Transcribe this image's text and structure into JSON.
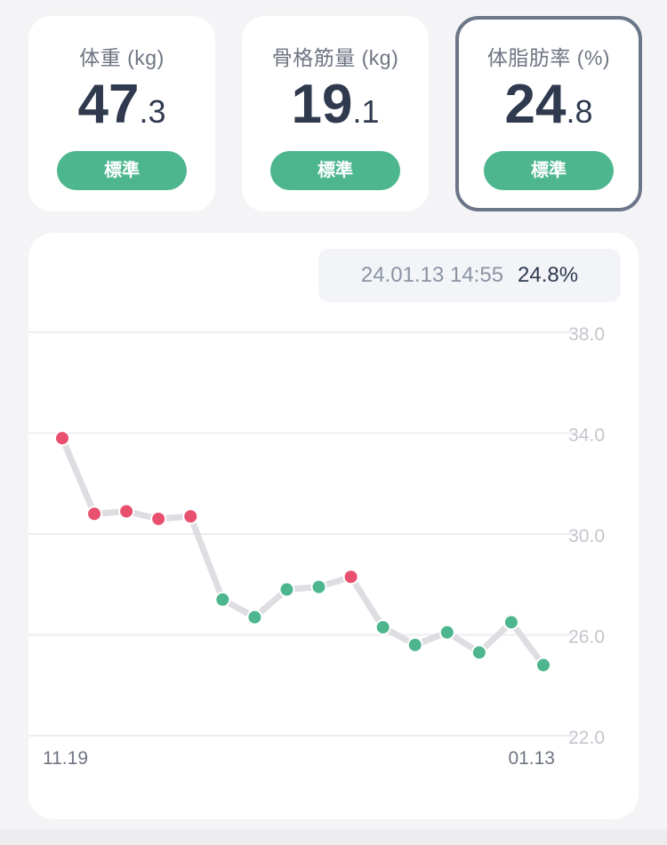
{
  "cards": [
    {
      "title": "体重 (kg)",
      "value_int": "47",
      "value_dec": ".3",
      "badge": "標準"
    },
    {
      "title": "骨格筋量 (kg)",
      "value_int": "19",
      "value_dec": ".1",
      "badge": "標準"
    },
    {
      "title": "体脂肪率 (%)",
      "value_int": "24",
      "value_dec": ".8",
      "badge": "標準",
      "selected": true
    }
  ],
  "tooltip": {
    "time": "24.01.13 14:55",
    "value": "24.8%"
  },
  "colors": {
    "badge": "#4db68f",
    "point_normal": "#4db68f",
    "point_high": "#e8506e",
    "line": "#dddde2",
    "grid": "#eceef2",
    "selected_border": "#6c7689"
  },
  "chart_data": {
    "type": "line",
    "x_labels": [
      "11.19",
      "01.13"
    ],
    "y_ticks": [
      "38.0",
      "34.0",
      "30.0",
      "26.0",
      "22.0"
    ],
    "ylim": [
      22,
      38
    ],
    "grid": true,
    "series": [
      {
        "values": [
          33.8,
          30.8,
          30.9,
          30.6,
          30.7,
          27.4,
          26.7,
          27.8,
          27.9,
          28.3,
          26.3,
          25.6,
          26.1,
          25.3,
          26.5,
          24.8
        ],
        "status": [
          "high",
          "high",
          "high",
          "high",
          "high",
          "normal",
          "normal",
          "normal",
          "normal",
          "high",
          "normal",
          "normal",
          "normal",
          "normal",
          "normal",
          "normal"
        ]
      }
    ]
  }
}
